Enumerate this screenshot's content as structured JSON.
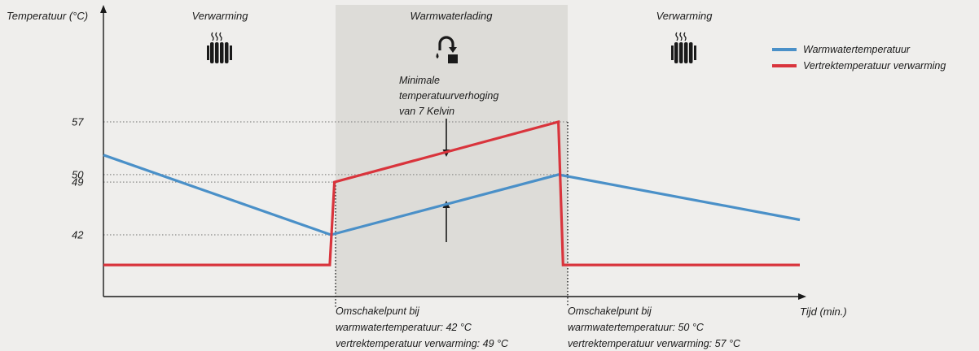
{
  "chart_data": {
    "type": "line",
    "ylabel": "Temperatuur (°C)",
    "xlabel": "Tijd (min.)",
    "y_ticks": [
      "42",
      "49",
      "50",
      "57"
    ],
    "phases": [
      {
        "label": "Verwarming",
        "icon": "radiator-icon"
      },
      {
        "label": "Warmwaterlading",
        "icon": "tap-icon"
      },
      {
        "label": "Verwarming",
        "icon": "radiator-icon"
      }
    ],
    "series": [
      {
        "name": "Warmwatertemperatuur",
        "color": "#4a90c8",
        "points": [
          [
            0,
            52.6
          ],
          [
            19.6,
            42
          ],
          [
            39.2,
            50
          ],
          [
            60,
            44
          ]
        ]
      },
      {
        "name": "Vertrektemperatuur verwarming",
        "color": "#d9343c",
        "points": [
          [
            0,
            38
          ],
          [
            19.5,
            38
          ],
          [
            19.9,
            49
          ],
          [
            39.2,
            57
          ],
          [
            39.6,
            38
          ],
          [
            60,
            38
          ]
        ]
      }
    ],
    "annotation": {
      "lines": [
        "Minimale",
        "temperatuurverhoging",
        "van 7 Kelvin"
      ]
    },
    "switch_points": [
      {
        "lines": [
          "Omschakelpunt bij",
          "warmwatertemperatuur: 42 °C",
          "vertrektemperatuur verwarming: 49 °C"
        ]
      },
      {
        "lines": [
          "Omschakelpunt bij",
          "warmwatertemperatuur: 50 °C",
          "vertrektemperatuur verwarming: 57 °C"
        ]
      }
    ],
    "legend_position": "top-right",
    "grid": false
  }
}
